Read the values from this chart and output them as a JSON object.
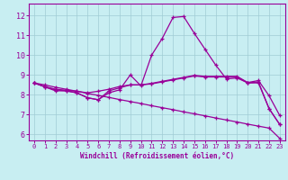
{
  "xlabel": "Windchill (Refroidissement éolien,°C)",
  "background_color": "#c8eef2",
  "grid_color": "#a0ccd4",
  "line_color": "#990099",
  "xlim": [
    -0.5,
    23.5
  ],
  "ylim": [
    5.7,
    12.6
  ],
  "x_ticks": [
    0,
    1,
    2,
    3,
    4,
    5,
    6,
    7,
    8,
    9,
    10,
    11,
    12,
    13,
    14,
    15,
    16,
    17,
    18,
    19,
    20,
    21,
    22,
    23
  ],
  "y_ticks": [
    6,
    7,
    8,
    9,
    10,
    11,
    12
  ],
  "series": [
    [
      8.6,
      8.4,
      8.25,
      8.2,
      8.1,
      7.85,
      7.75,
      8.2,
      8.35,
      8.5,
      8.5,
      8.55,
      8.65,
      8.75,
      8.85,
      8.95,
      8.9,
      8.9,
      8.9,
      8.9,
      8.6,
      8.65,
      7.3,
      6.5
    ],
    [
      8.6,
      8.42,
      8.28,
      8.23,
      8.18,
      8.1,
      8.18,
      8.28,
      8.42,
      8.5,
      8.5,
      8.58,
      8.68,
      8.78,
      8.88,
      8.98,
      8.93,
      8.93,
      8.93,
      8.93,
      8.62,
      8.72,
      7.95,
      6.95
    ],
    [
      8.6,
      8.5,
      8.38,
      8.28,
      8.18,
      8.07,
      7.97,
      7.87,
      7.76,
      7.66,
      7.56,
      7.45,
      7.35,
      7.25,
      7.14,
      7.04,
      6.94,
      6.83,
      6.73,
      6.63,
      6.52,
      6.42,
      6.32,
      5.8
    ],
    [
      8.6,
      8.4,
      8.2,
      8.2,
      8.1,
      7.85,
      7.75,
      8.1,
      8.25,
      9.0,
      8.45,
      10.0,
      10.85,
      11.9,
      11.95,
      11.1,
      10.3,
      9.5,
      8.8,
      8.85,
      8.6,
      8.6,
      7.3,
      6.5
    ]
  ]
}
